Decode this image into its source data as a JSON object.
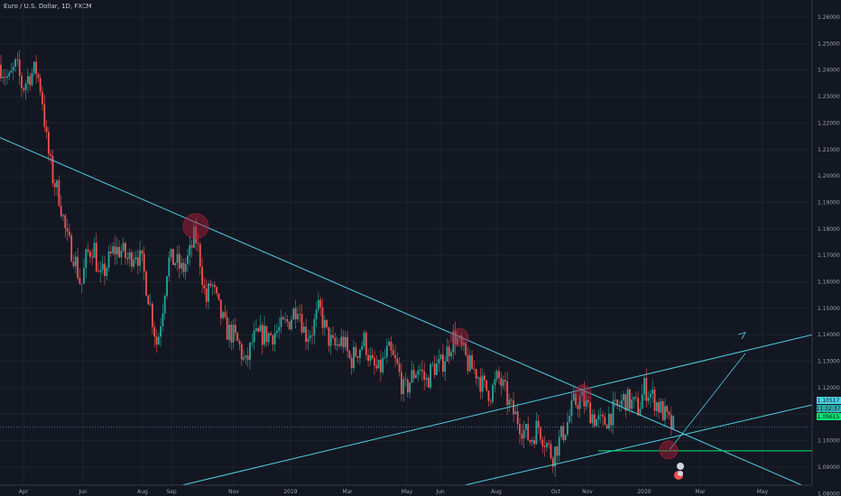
{
  "header": {
    "title": "Euro / U.S. Dollar, 1D, FXCM"
  },
  "chart_data": {
    "type": "candlestick",
    "title": "Euro / U.S. Dollar, 1D, FXCM",
    "symbol": "EURUSD",
    "x_tick_labels": [
      "Apr",
      "Jun",
      "Aug",
      "Sep",
      "Nov",
      "2019",
      "Mar",
      "May",
      "Jun",
      "Aug",
      "Oct",
      "Nov",
      "2020",
      "Mar",
      "May"
    ],
    "y_tick_labels": [
      "1.26000",
      "1.25000",
      "1.24000",
      "1.23000",
      "1.22000",
      "1.21000",
      "1.20000",
      "1.19000",
      "1.18000",
      "1.17000",
      "1.16000",
      "1.15000",
      "1.14000",
      "1.13000",
      "1.12000",
      "1.11000",
      "1.10000",
      "1.09000",
      "1.08000"
    ],
    "ylim": [
      1.0765,
      1.2645
    ],
    "grid": true,
    "price_labels": {
      "last_price": "1.10517",
      "countdown": "11:32:37",
      "horizontal_level": "1.09615"
    },
    "colors": {
      "background": "#131722",
      "up": "#26a69a",
      "down": "#ef5350",
      "trendline": "#4dd0e1",
      "level_line": "#00e676",
      "highlight": "#b71c3a"
    }
  },
  "x_axis": {
    "labels": [
      "Apr",
      "Jun",
      "Aug",
      "Sep",
      "Nov",
      "2019",
      "Mar",
      "May",
      "Jun",
      "Aug",
      "Oct",
      "Nov",
      "2020",
      "Mar",
      "May"
    ]
  }
}
